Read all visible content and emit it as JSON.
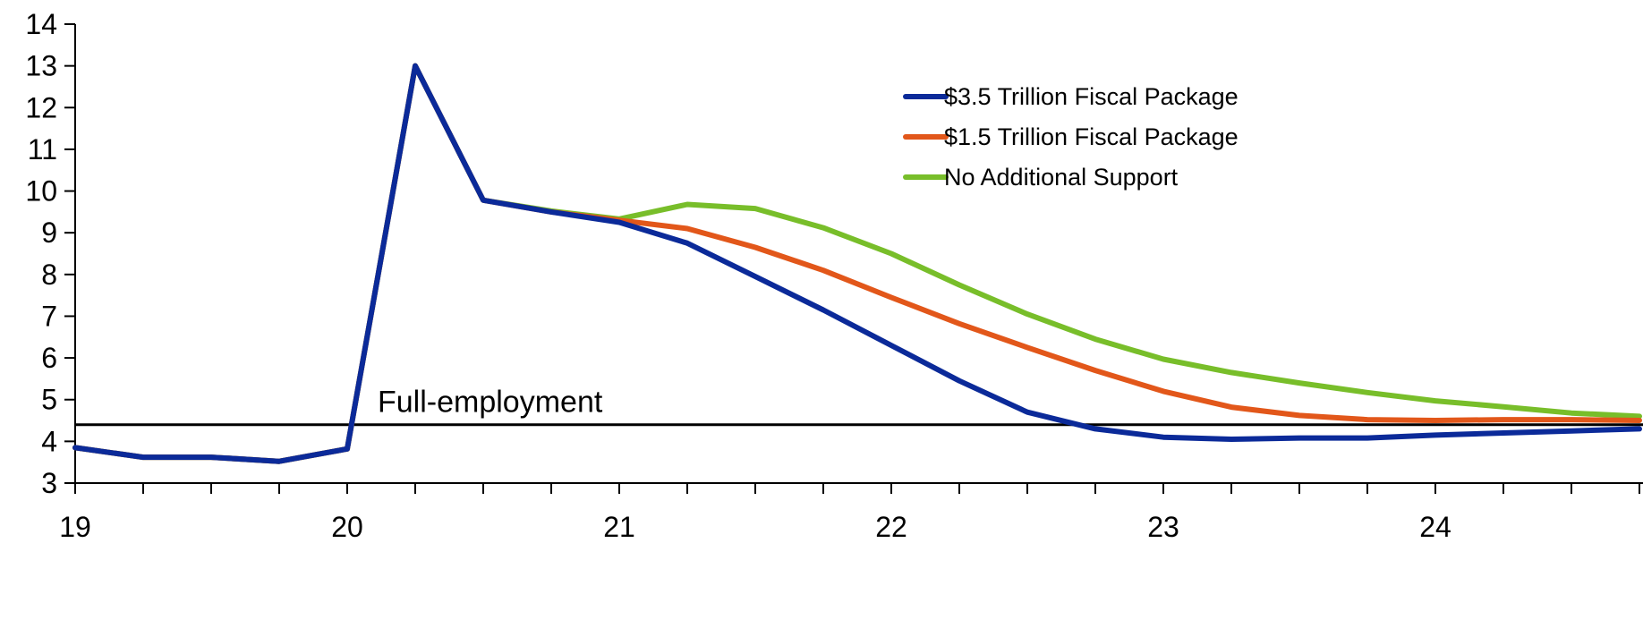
{
  "chart_data": {
    "type": "line",
    "x": [
      19.0,
      19.25,
      19.5,
      19.75,
      20.0,
      20.25,
      20.5,
      20.75,
      21.0,
      21.25,
      21.5,
      21.75,
      22.0,
      22.25,
      22.5,
      22.75,
      23.0,
      23.25,
      23.5,
      23.75,
      24.0,
      24.25,
      24.5,
      24.75
    ],
    "xlim": [
      19,
      24.75
    ],
    "ylim": [
      3,
      14
    ],
    "xticks": [
      19,
      20,
      21,
      22,
      23,
      24
    ],
    "xtick_labels": [
      "19",
      "20",
      "21",
      "22",
      "23",
      "24"
    ],
    "yticks": [
      3,
      4,
      5,
      6,
      7,
      8,
      9,
      10,
      11,
      12,
      13,
      14
    ],
    "ytick_labels": [
      "3",
      "4",
      "5",
      "6",
      "7",
      "8",
      "9",
      "10",
      "11",
      "12",
      "13",
      "14"
    ],
    "reference_line": {
      "y": 4.4,
      "label": "Full-employment",
      "color": "#000000"
    },
    "legend_position": "top-right",
    "grid": false,
    "series": [
      {
        "name": "$3.5 Trillion Fiscal Package",
        "color": "#0B2A99",
        "values": [
          3.85,
          3.62,
          3.62,
          3.52,
          3.82,
          13.0,
          9.78,
          9.5,
          9.25,
          8.75,
          7.95,
          7.15,
          6.3,
          5.45,
          4.7,
          4.3,
          4.1,
          4.05,
          4.08,
          4.08,
          4.15,
          4.2,
          4.25,
          4.3
        ]
      },
      {
        "name": "$1.5 Trillion Fiscal Package",
        "color": "#E2571A",
        "values": [
          3.85,
          3.62,
          3.62,
          3.52,
          3.82,
          13.0,
          9.78,
          9.5,
          9.3,
          9.1,
          8.65,
          8.1,
          7.45,
          6.82,
          6.25,
          5.7,
          5.2,
          4.82,
          4.62,
          4.52,
          4.5,
          4.52,
          4.52,
          4.5
        ]
      },
      {
        "name": "No Additional Support",
        "color": "#78BE2A",
        "values": [
          3.85,
          3.62,
          3.62,
          3.52,
          3.82,
          13.0,
          9.78,
          9.52,
          9.33,
          9.68,
          9.58,
          9.12,
          8.5,
          7.75,
          7.05,
          6.45,
          5.97,
          5.65,
          5.4,
          5.17,
          4.97,
          4.83,
          4.68,
          4.6
        ]
      }
    ]
  }
}
